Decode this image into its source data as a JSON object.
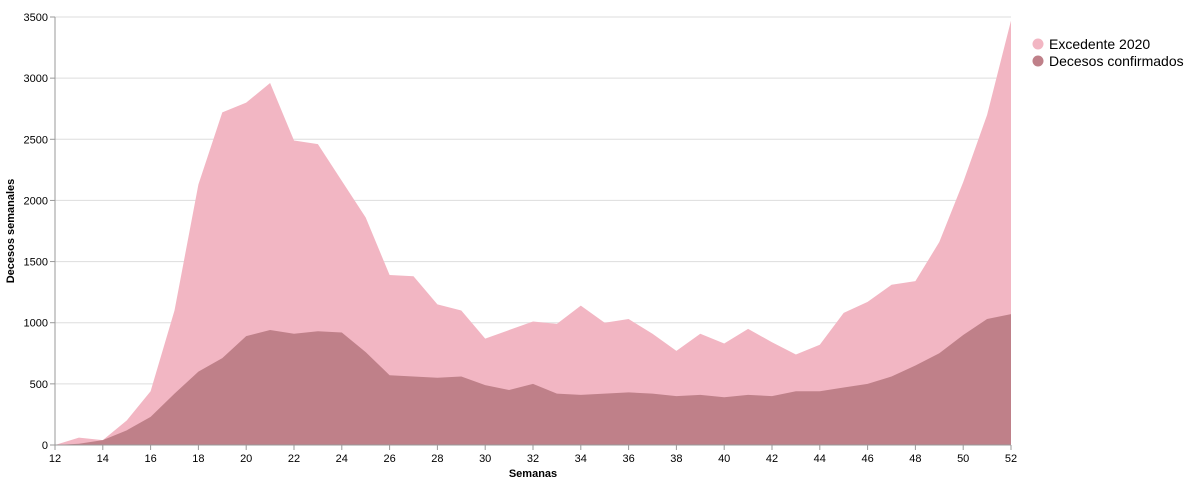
{
  "chart_data": {
    "type": "area",
    "xlabel": "Semanas",
    "ylabel": "Decesos semanales",
    "xlim": [
      12,
      52
    ],
    "ylim": [
      0,
      3500
    ],
    "x_ticks": [
      12,
      14,
      16,
      18,
      20,
      22,
      24,
      26,
      28,
      30,
      32,
      34,
      36,
      38,
      40,
      42,
      44,
      46,
      48,
      50,
      52
    ],
    "y_ticks": [
      0,
      500,
      1000,
      1500,
      2000,
      2500,
      3000,
      3500
    ],
    "grid": "horizontal",
    "legend_position": "top-right",
    "x": [
      12,
      13,
      14,
      15,
      16,
      17,
      18,
      19,
      20,
      21,
      22,
      23,
      24,
      25,
      26,
      27,
      28,
      29,
      30,
      31,
      32,
      33,
      34,
      35,
      36,
      37,
      38,
      39,
      40,
      41,
      42,
      43,
      44,
      45,
      46,
      47,
      48,
      49,
      50,
      51,
      52
    ],
    "series": [
      {
        "name": "Excedente 2020",
        "color": "#f2b6c3",
        "values": [
          0,
          60,
          40,
          200,
          440,
          1100,
          2130,
          2720,
          2800,
          2960,
          2490,
          2460,
          2160,
          1860,
          1390,
          1380,
          1150,
          1100,
          870,
          940,
          1010,
          990,
          1140,
          1000,
          1030,
          910,
          770,
          910,
          830,
          950,
          840,
          740,
          820,
          1080,
          1170,
          1310,
          1340,
          1660,
          2150,
          2700,
          3470
        ]
      },
      {
        "name": "Decesos confirmados",
        "color": "#bf8089",
        "values": [
          0,
          10,
          40,
          120,
          230,
          420,
          600,
          710,
          890,
          940,
          910,
          930,
          920,
          760,
          570,
          560,
          550,
          560,
          490,
          450,
          500,
          420,
          410,
          420,
          430,
          420,
          400,
          410,
          390,
          410,
          400,
          440,
          440,
          470,
          500,
          560,
          650,
          750,
          900,
          1030,
          1070
        ]
      }
    ]
  }
}
